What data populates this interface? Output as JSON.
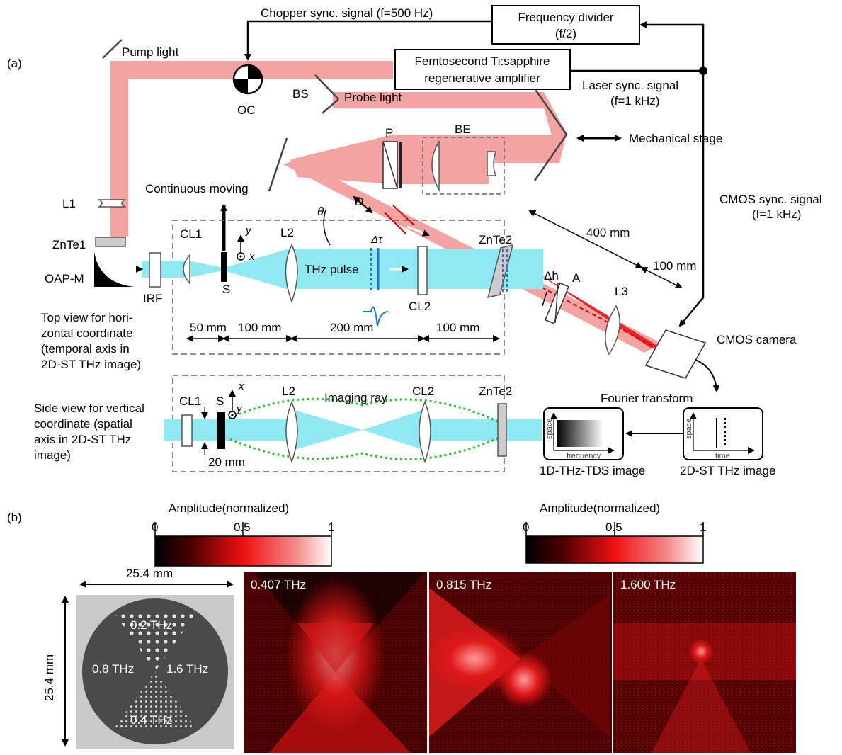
{
  "panel_labels": {
    "a": "(a)",
    "b": "(b)"
  },
  "setup": {
    "chopper_signal": "Chopper sync. signal (f=500 Hz)",
    "frequency_divider": [
      "Frequency divider",
      "(f/2)"
    ],
    "pump_light": "Pump light",
    "laser": [
      "Femtosecond Ti:sapphire",
      "regenerative amplifier"
    ],
    "laser_sync": [
      "Laser sync. signal",
      "(f=1 kHz)"
    ],
    "oc": "OC",
    "bs": "BS",
    "probe_light": "Probe light",
    "p": "P",
    "be": "BE",
    "mechanical_stage": "Mechanical stage",
    "continuous_moving": "Continuous moving",
    "l1": "L1",
    "d": "D",
    "theta": "θ",
    "cmos_sync": [
      "CMOS sync. signal",
      "(f=1 kHz)"
    ],
    "znte1": "ZnTe1",
    "oap_m": "OAP-M",
    "irf": "IRF",
    "cl1": "CL1",
    "s": "S",
    "x": "x",
    "y": "y",
    "l2": "L2",
    "thz_pulse": "THz pulse",
    "delta_tau": "Δτ",
    "cl2": "CL2",
    "znte2": "ZnTe2",
    "dim_400": "400 mm",
    "dim_100_right": "100 mm",
    "delta_h": "Δh",
    "a": "A",
    "l3": "L3",
    "cmos_camera": "CMOS camera",
    "top_view": [
      "Top view for hori-",
      "zontal coordinate",
      "(temporal axis in",
      "2D-ST THz image)"
    ],
    "dims_top": [
      "50 mm",
      "100 mm",
      "200 mm",
      "100 mm"
    ],
    "side_view": [
      "Side view for vertical",
      "coordinate (spatial",
      "axis in 2D-ST THz",
      "image)"
    ],
    "imaging_ray": "Imaging ray",
    "dim_20": "20 mm",
    "fourier_transform": "Fourier transform",
    "box_tds": {
      "y": "space",
      "x": "frequency"
    },
    "box_st": {
      "y": "space",
      "x": "time"
    },
    "tds_image": "1D-THz-TDS image",
    "st_image": "2D-ST THz image"
  },
  "results": {
    "colorbar_left": {
      "title": "Amplitude(normalized)",
      "ticks": [
        "0",
        "0.5",
        "1"
      ]
    },
    "colorbar_right": {
      "title": "Amplitude(normalized)",
      "ticks": [
        "0",
        "0.5",
        "1"
      ]
    },
    "sample_width": "25.4 mm",
    "sample_height": "25.4 mm",
    "sample_labels": [
      "0.2 THz",
      "0.8 THz",
      "1.6 THz",
      "0.4 THz"
    ],
    "images": [
      "0.407 THz",
      "0.815 THz",
      "1.600 THz"
    ]
  },
  "colors": {
    "probe_beam": "#f4a3a3",
    "thz_beam": "#8ee9f2",
    "focus_beam": "#e8252a",
    "pulse_blue": "#2a6fdb",
    "imaging_ray": "#22c02a"
  }
}
